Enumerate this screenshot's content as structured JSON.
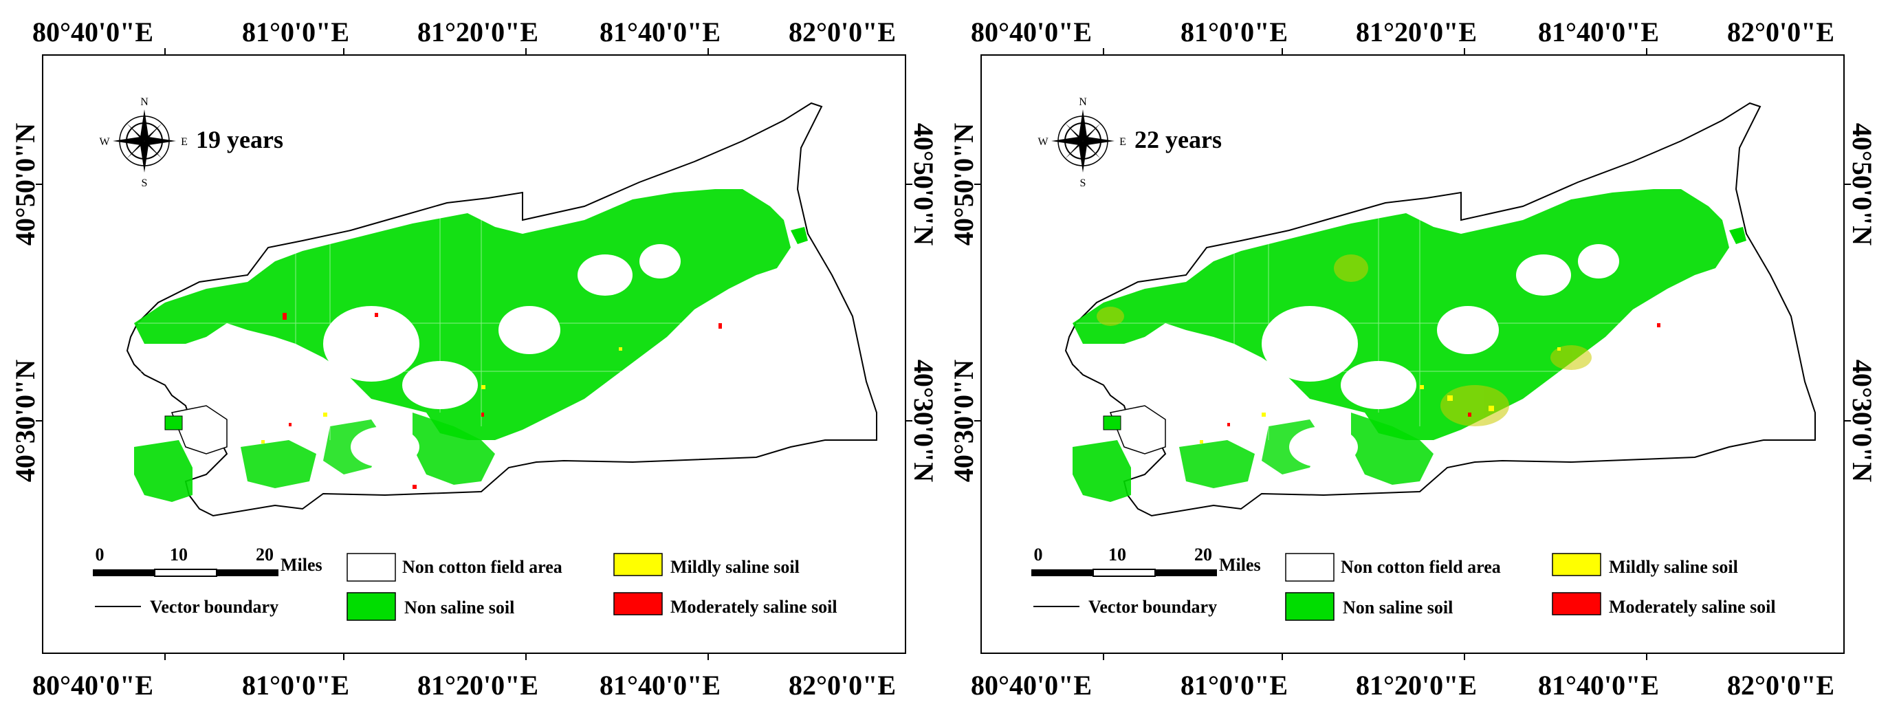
{
  "panels": [
    {
      "title": "19 years",
      "top_ticks": [
        "80°40'0\"E",
        "81°0'0\"E",
        "81°20'0\"E",
        "81°40'0\"E",
        "82°0'0\"E"
      ],
      "bottom_ticks": [
        "80°40'0\"E",
        "81°0'0\"E",
        "81°20'0\"E",
        "81°40'0\"E",
        "82°0'0\"E"
      ],
      "left_ticks": [
        "40°50'0\"N",
        "40°30'0\"N"
      ],
      "right_ticks": [
        "40°50'0\"N",
        "40°30'0\"N"
      ],
      "compass": {
        "n": "N",
        "s": "S",
        "e": "E",
        "w": "W"
      },
      "scale": {
        "t0": "0",
        "t1": "10",
        "t2": "20",
        "unit": "Miles"
      },
      "legend": {
        "boundary": "Vector boundary",
        "non_cotton": "Non cotton field area",
        "non_saline": "Non saline soil",
        "mild": "Mildly saline soil",
        "moderate": "Moderately saline soil"
      }
    },
    {
      "title": "22 years",
      "top_ticks": [
        "80°40'0\"E",
        "81°0'0\"E",
        "81°20'0\"E",
        "81°40'0\"E",
        "82°0'0\"E"
      ],
      "bottom_ticks": [
        "80°40'0\"E",
        "81°0'0\"E",
        "81°20'0\"E",
        "81°40'0\"E",
        "82°0'0\"E"
      ],
      "left_ticks": [
        "40°50'0\"N",
        "40°30'0\"N"
      ],
      "right_ticks": [
        "40°50'0\"N",
        "40°30'0\"N"
      ],
      "compass": {
        "n": "N",
        "s": "S",
        "e": "E",
        "w": "W"
      },
      "scale": {
        "t0": "0",
        "t1": "10",
        "t2": "20",
        "unit": "Miles"
      },
      "legend": {
        "boundary": "Vector boundary",
        "non_cotton": "Non cotton field area",
        "non_saline": "Non saline soil",
        "mild": "Mildly saline soil",
        "moderate": "Moderately saline soil"
      }
    }
  ],
  "colors": {
    "non_saline": "#00dd00",
    "mild": "#ffff00",
    "moderate": "#ff0000",
    "non_cotton": "#ffffff",
    "boundary": "#000000"
  }
}
